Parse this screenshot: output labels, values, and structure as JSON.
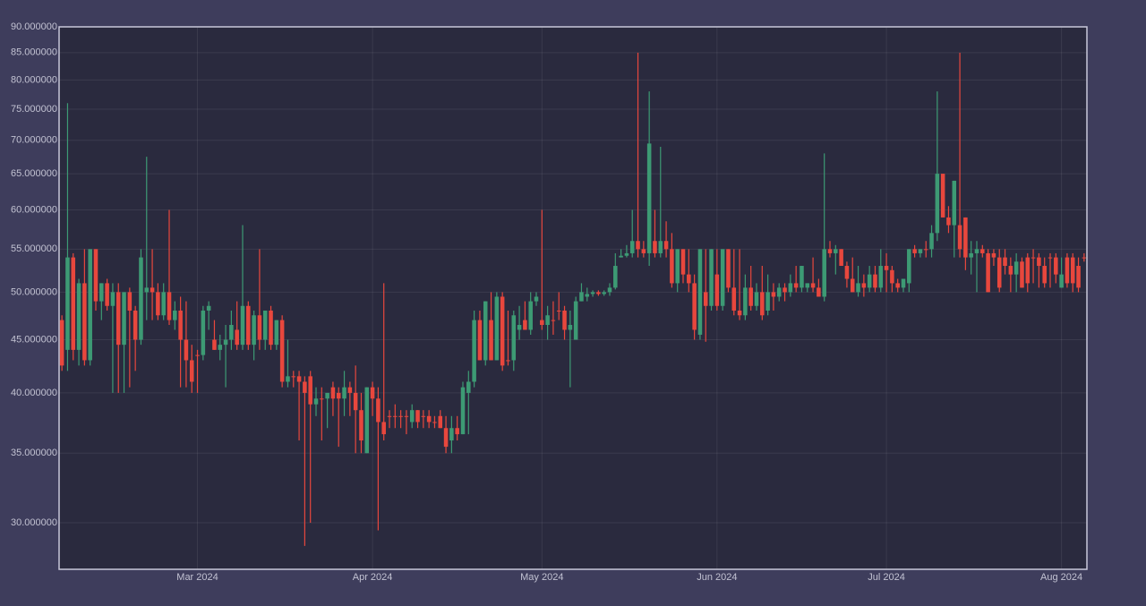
{
  "chart_data": {
    "type": "candlestick",
    "log_y": true,
    "grid": true,
    "increasing_color": "#3d9a74",
    "decreasing_color": "#e8473d",
    "xlim": [
      "2024-02-05T12:00:00Z",
      "2024-08-05T12:00:00Z"
    ],
    "xticks": [
      {
        "value": "2024-03-01",
        "label": "Mar 2024"
      },
      {
        "value": "2024-04-01",
        "label": "Apr 2024"
      },
      {
        "value": "2024-05-01",
        "label": "May 2024"
      },
      {
        "value": "2024-06-01",
        "label": "Jun 2024"
      },
      {
        "value": "2024-07-01",
        "label": "Jul 2024"
      },
      {
        "value": "2024-08-01",
        "label": "Aug 2024"
      }
    ],
    "ylim": [
      27.06,
      90
    ],
    "yticks": [
      {
        "value": 30,
        "label": "30.000000"
      },
      {
        "value": 35,
        "label": "35.000000"
      },
      {
        "value": 40,
        "label": "40.000000"
      },
      {
        "value": 45,
        "label": "45.000000"
      },
      {
        "value": 50,
        "label": "50.000000"
      },
      {
        "value": 55,
        "label": "55.000000"
      },
      {
        "value": 60,
        "label": "60.000000"
      },
      {
        "value": 65,
        "label": "65.000000"
      },
      {
        "value": 70,
        "label": "70.000000"
      },
      {
        "value": 75,
        "label": "75.000000"
      },
      {
        "value": 80,
        "label": "80.000000"
      },
      {
        "value": 85,
        "label": "85.000000"
      },
      {
        "value": 90,
        "label": "90.000000"
      }
    ],
    "x": [
      "2024-02-06",
      "2024-02-07",
      "2024-02-08",
      "2024-02-09",
      "2024-02-10",
      "2024-02-11",
      "2024-02-12",
      "2024-02-13",
      "2024-02-14",
      "2024-02-15",
      "2024-02-16",
      "2024-02-17",
      "2024-02-18",
      "2024-02-19",
      "2024-02-20",
      "2024-02-21",
      "2024-02-22",
      "2024-02-23",
      "2024-02-24",
      "2024-02-25",
      "2024-02-26",
      "2024-02-27",
      "2024-02-28",
      "2024-02-29",
      "2024-03-01",
      "2024-03-02",
      "2024-03-03",
      "2024-03-04",
      "2024-03-05",
      "2024-03-06",
      "2024-03-07",
      "2024-03-08",
      "2024-03-09",
      "2024-03-10",
      "2024-03-11",
      "2024-03-12",
      "2024-03-13",
      "2024-03-14",
      "2024-03-15",
      "2024-03-16",
      "2024-03-17",
      "2024-03-18",
      "2024-03-19",
      "2024-03-20",
      "2024-03-21",
      "2024-03-22",
      "2024-03-23",
      "2024-03-24",
      "2024-03-25",
      "2024-03-26",
      "2024-03-27",
      "2024-03-28",
      "2024-03-29",
      "2024-03-30",
      "2024-03-31",
      "2024-04-01",
      "2024-04-02",
      "2024-04-03",
      "2024-04-04",
      "2024-04-05",
      "2024-04-06",
      "2024-04-07",
      "2024-04-08",
      "2024-04-09",
      "2024-04-10",
      "2024-04-11",
      "2024-04-12",
      "2024-04-13",
      "2024-04-14",
      "2024-04-15",
      "2024-04-16",
      "2024-04-17",
      "2024-04-18",
      "2024-04-19",
      "2024-04-20",
      "2024-04-21",
      "2024-04-22",
      "2024-04-23",
      "2024-04-24",
      "2024-04-25",
      "2024-04-26",
      "2024-04-27",
      "2024-04-28",
      "2024-04-29",
      "2024-04-30",
      "2024-05-01",
      "2024-05-02",
      "2024-05-03",
      "2024-05-04",
      "2024-05-05",
      "2024-05-06",
      "2024-05-07",
      "2024-05-08",
      "2024-05-09",
      "2024-05-10",
      "2024-05-11",
      "2024-05-12",
      "2024-05-13",
      "2024-05-14",
      "2024-05-15",
      "2024-05-16",
      "2024-05-17",
      "2024-05-18",
      "2024-05-19",
      "2024-05-20",
      "2024-05-21",
      "2024-05-22",
      "2024-05-23",
      "2024-05-24",
      "2024-05-25",
      "2024-05-26",
      "2024-05-27",
      "2024-05-28",
      "2024-05-29",
      "2024-05-30",
      "2024-05-31",
      "2024-06-01",
      "2024-06-02",
      "2024-06-03",
      "2024-06-04",
      "2024-06-05",
      "2024-06-06",
      "2024-06-07",
      "2024-06-08",
      "2024-06-09",
      "2024-06-10",
      "2024-06-11",
      "2024-06-12",
      "2024-06-13",
      "2024-06-14",
      "2024-06-15",
      "2024-06-16",
      "2024-06-17",
      "2024-06-18",
      "2024-06-19",
      "2024-06-20",
      "2024-06-21",
      "2024-06-22",
      "2024-06-23",
      "2024-06-24",
      "2024-06-25",
      "2024-06-26",
      "2024-06-27",
      "2024-06-28",
      "2024-06-29",
      "2024-06-30",
      "2024-07-01",
      "2024-07-02",
      "2024-07-03",
      "2024-07-04",
      "2024-07-05",
      "2024-07-06",
      "2024-07-07",
      "2024-07-08",
      "2024-07-09",
      "2024-07-10",
      "2024-07-11",
      "2024-07-12",
      "2024-07-13",
      "2024-07-14",
      "2024-07-15",
      "2024-07-16",
      "2024-07-17",
      "2024-07-18",
      "2024-07-19",
      "2024-07-20",
      "2024-07-21",
      "2024-07-22",
      "2024-07-23",
      "2024-07-24",
      "2024-07-25",
      "2024-07-26",
      "2024-07-27",
      "2024-07-28",
      "2024-07-29",
      "2024-07-30",
      "2024-07-31",
      "2024-08-01",
      "2024-08-02",
      "2024-08-03",
      "2024-08-04",
      "2024-08-05"
    ],
    "open": [
      47,
      44,
      54,
      44,
      51,
      43,
      55,
      49,
      51,
      48.5,
      50,
      44.5,
      50,
      48,
      45,
      50,
      50.5,
      50,
      47.5,
      50,
      47,
      48,
      45,
      43,
      43.5,
      43.5,
      48,
      45,
      44,
      44.5,
      45,
      46,
      44.5,
      48.5,
      44.5,
      47.5,
      45,
      48,
      44.5,
      47,
      41,
      41.5,
      41.5,
      41,
      41.5,
      39,
      39.5,
      39.5,
      40.5,
      40,
      39.5,
      40.5,
      40,
      38.5,
      35,
      40.5,
      39.5,
      37.5,
      38,
      38,
      38,
      38,
      37.5,
      38.5,
      38,
      38,
      37.5,
      38,
      37,
      36,
      37,
      36.5,
      40,
      41,
      47,
      43,
      47,
      43,
      49.5,
      43,
      43,
      46,
      47,
      46,
      49,
      47,
      46.5,
      47,
      48,
      48,
      46,
      45,
      49,
      49.5,
      49.8,
      50,
      49.8,
      50,
      50.5,
      54,
      54.2,
      54.5,
      56,
      55,
      54.5,
      56,
      54.5,
      56,
      55,
      51,
      55,
      52,
      51,
      45.5,
      50,
      48.5,
      52,
      48.5,
      55,
      50.5,
      48,
      47.5,
      50.5,
      48.5,
      50,
      48,
      50,
      49.5,
      50.5,
      50,
      51,
      50.5,
      50.5,
      51,
      50.5,
      49.5,
      55,
      54.5,
      55,
      53,
      51.5,
      50,
      51,
      50.5,
      52,
      50.5,
      53,
      52.5,
      51,
      50.5,
      51,
      55,
      54.5,
      55,
      55,
      57,
      65,
      59,
      58,
      58,
      59,
      54,
      54.5,
      55,
      54.5,
      54.5,
      54,
      54,
      53,
      52,
      53.5,
      54,
      54,
      54,
      53,
      54,
      54,
      50.5,
      54,
      54,
      53,
      54
    ],
    "high": [
      47.5,
      76,
      54.5,
      51.5,
      55,
      55,
      55,
      51,
      51.5,
      51,
      51,
      50,
      50.5,
      48.5,
      55,
      67.5,
      55,
      51,
      51,
      60,
      49,
      49.5,
      49,
      44.5,
      44,
      48.5,
      49,
      47,
      45.5,
      46.5,
      48,
      49,
      58,
      49,
      48,
      55,
      48,
      48.5,
      47,
      47.5,
      45,
      42,
      42,
      41.5,
      42,
      40.5,
      40.5,
      40,
      41,
      40.5,
      42,
      41,
      42.5,
      40,
      40.5,
      41,
      40.5,
      51,
      38.5,
      39,
      38.5,
      38.5,
      39,
      38.5,
      38.5,
      38.5,
      38,
      38.5,
      38,
      38,
      38,
      41,
      42,
      48,
      48,
      49,
      50,
      50,
      50,
      48,
      48,
      48.5,
      49,
      50,
      50,
      60,
      48.5,
      49,
      50,
      48.5,
      48,
      49.5,
      51,
      50.5,
      50.2,
      50.2,
      50.2,
      51,
      54.5,
      55,
      55.5,
      60,
      85,
      56,
      78,
      60,
      69,
      58.5,
      57,
      55,
      55,
      55,
      52,
      55,
      55,
      55,
      55,
      55,
      55,
      55,
      55,
      52,
      53,
      51,
      53,
      52,
      51,
      51,
      51,
      52,
      53,
      53,
      51,
      54,
      51.5,
      68,
      56,
      55.5,
      55,
      53.5,
      54,
      53,
      52,
      53,
      53,
      55,
      54.5,
      53,
      51.5,
      51.5,
      55,
      55.5,
      55,
      56,
      58,
      78,
      65,
      60.5,
      64,
      85,
      59,
      56,
      56,
      55.5,
      55,
      55,
      55,
      55,
      54,
      54.5,
      54,
      54.5,
      55,
      54.5,
      54,
      54.5,
      54.5,
      54,
      54.5,
      54.5,
      54,
      54.5
    ],
    "low": [
      42,
      42,
      43,
      42.5,
      42.5,
      42.5,
      48,
      47,
      48,
      40,
      40,
      40,
      40.5,
      42,
      44.5,
      47,
      47,
      47,
      47,
      46.5,
      46,
      40.5,
      40.5,
      40,
      40,
      43,
      46,
      44,
      43,
      40.5,
      44,
      44,
      44,
      44,
      43,
      44,
      44,
      44,
      44,
      40.5,
      40.5,
      40.5,
      36,
      28.5,
      30,
      38,
      36,
      37,
      38,
      35.5,
      38,
      38,
      35,
      35,
      35,
      38,
      29.5,
      36,
      37,
      37,
      37,
      36.5,
      37,
      37,
      37,
      37,
      37,
      37,
      35,
      35,
      36,
      36.5,
      36.5,
      40.5,
      43,
      42.5,
      43,
      43,
      42,
      42.5,
      42,
      45,
      46,
      45.5,
      48.5,
      46,
      45,
      45.5,
      47,
      45,
      40.5,
      45,
      49,
      49,
      49.5,
      49.6,
      49.6,
      49.6,
      50.3,
      54,
      54,
      54,
      54,
      54,
      53,
      54,
      54,
      54,
      50.5,
      50,
      51,
      50,
      45,
      45,
      44.8,
      48,
      48,
      48,
      50,
      47.5,
      47,
      47,
      48,
      48,
      47,
      47.5,
      48,
      49,
      49,
      49.5,
      50,
      50,
      50,
      50,
      49.5,
      49,
      54,
      52,
      53,
      50.5,
      50,
      49.5,
      49.5,
      50,
      50,
      50,
      50,
      50,
      50,
      50,
      50,
      54,
      54,
      54,
      54,
      56,
      59,
      57,
      54,
      54,
      52.5,
      52,
      50,
      54,
      50,
      53,
      50,
      52,
      50,
      50,
      50.5,
      50,
      51,
      50.5,
      50.5,
      50.5,
      51,
      50.5,
      50.5,
      50,
      50,
      53.5
    ],
    "close": [
      42.5,
      54,
      44,
      51,
      43,
      55,
      49,
      51,
      48.5,
      50,
      44.5,
      50,
      48,
      45,
      54,
      50.5,
      50,
      47.5,
      50,
      47,
      48,
      45,
      43,
      41,
      43.5,
      48,
      48.5,
      44,
      44.5,
      45,
      46.5,
      44.5,
      48.5,
      44.5,
      47.5,
      45,
      48,
      44.5,
      47,
      41,
      41.5,
      41.5,
      41,
      40,
      39,
      39.5,
      39.5,
      40,
      39.5,
      39.5,
      40.5,
      40,
      38.5,
      36,
      40.5,
      39.5,
      37.5,
      36.5,
      38,
      38,
      38,
      38,
      38.5,
      37.5,
      38,
      37.5,
      37.5,
      37,
      35.5,
      37,
      36.5,
      40.5,
      41,
      47,
      43,
      49,
      43,
      49.5,
      42.5,
      43,
      47.5,
      46.5,
      46,
      49,
      49.5,
      46.5,
      47.5,
      47,
      48,
      46,
      46.5,
      49,
      50,
      49.8,
      50,
      49.8,
      50,
      50.5,
      53,
      54.2,
      54.5,
      56,
      55,
      54.5,
      69.5,
      54.5,
      56,
      55,
      51,
      55,
      52,
      51,
      46,
      55,
      48.5,
      55,
      48.5,
      55,
      50.5,
      48,
      47.5,
      50.5,
      48.5,
      50,
      47.5,
      50,
      49.5,
      50.5,
      50,
      51,
      50.5,
      53,
      51,
      50.5,
      49.5,
      55,
      54.5,
      55,
      53,
      51.5,
      50,
      51,
      50.5,
      52,
      50.5,
      53,
      52.5,
      51,
      50.5,
      51.5,
      55,
      54.5,
      55,
      55,
      57,
      65,
      59,
      58,
      64,
      55,
      54,
      54.5,
      55,
      54.5,
      50,
      54,
      50.5,
      53,
      52,
      53.5,
      50.5,
      51,
      54,
      53,
      51,
      54,
      52,
      52,
      51,
      51,
      50.5,
      54
    ]
  }
}
